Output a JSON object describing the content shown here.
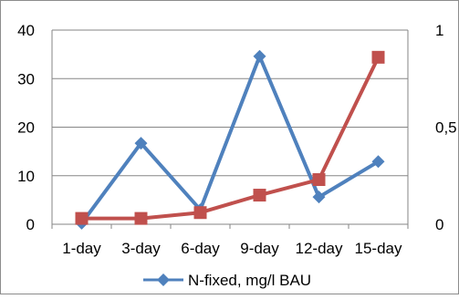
{
  "chart_data": {
    "type": "line",
    "categories": [
      "1-day",
      "3-day",
      "6-day",
      "9-day",
      "12-day",
      "15-day"
    ],
    "series": [
      {
        "name": "N-fixed, mg/l BAU",
        "axis": "left",
        "color": "#4F81BD",
        "marker": "diamond",
        "values": [
          0.2,
          16.7,
          3.0,
          34.6,
          5.6,
          12.9
        ]
      },
      {
        "axis": "right",
        "color": "#C0504D",
        "marker": "square",
        "values": [
          0.03,
          0.03,
          0.06,
          0.15,
          0.23,
          0.86
        ]
      }
    ],
    "y_left": {
      "ylim": [
        0,
        40
      ],
      "ticks": [
        0,
        10,
        20,
        30,
        40
      ],
      "tick_labels": [
        "0",
        "10",
        "20",
        "30",
        "40"
      ]
    },
    "y_right": {
      "ylim": [
        0,
        1
      ],
      "ticks": [
        0,
        0.5,
        1
      ],
      "tick_labels": [
        "0",
        "0,5",
        "1"
      ]
    },
    "grid": "horizontal",
    "legend": {
      "position": "bottom",
      "entries": [
        "N-fixed, mg/l BAU"
      ]
    },
    "title": "",
    "xlabel": "",
    "ylabel": ""
  }
}
